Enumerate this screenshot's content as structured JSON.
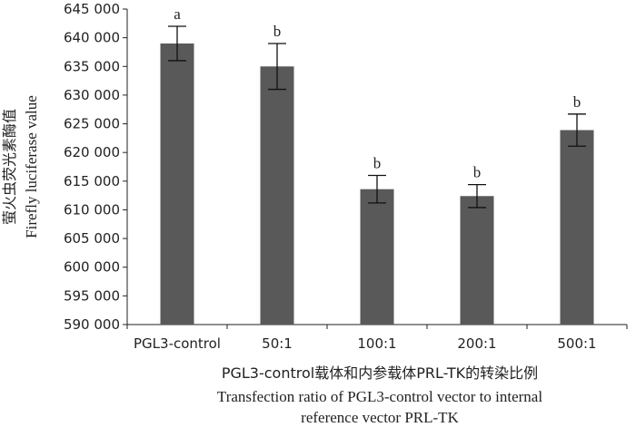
{
  "chart_data": {
    "type": "bar",
    "categories": [
      "PGL3-control",
      "50:1",
      "100:1",
      "200:1",
      "500:1"
    ],
    "values": [
      639000,
      635000,
      613600,
      612400,
      623900
    ],
    "errors": [
      3000,
      4000,
      2400,
      2000,
      2800
    ],
    "significance": [
      "a",
      "b",
      "b",
      "b",
      "b"
    ],
    "ylim": [
      590000,
      645000
    ],
    "yticks": [
      590000,
      595000,
      600000,
      605000,
      610000,
      615000,
      620000,
      625000,
      630000,
      635000,
      640000,
      645000
    ],
    "ytick_labels": [
      "590 000",
      "595 000",
      "600 000",
      "605 000",
      "610 000",
      "615 000",
      "620 000",
      "625 000",
      "630 000",
      "635 000",
      "640 000",
      "645 000"
    ],
    "ylabel_cn": "萤火虫荧光素酶值",
    "ylabel_en": "Firefly luciferase value",
    "xlabel_cn": "PGL3-control载体和内参载体PRL-TK的转染比例",
    "xlabel_en_line1": "Transfection ratio of PGL3-control vector to internal",
    "xlabel_en_line2": "reference vector PRL-TK",
    "bar_color": "#595959",
    "grid": false
  }
}
